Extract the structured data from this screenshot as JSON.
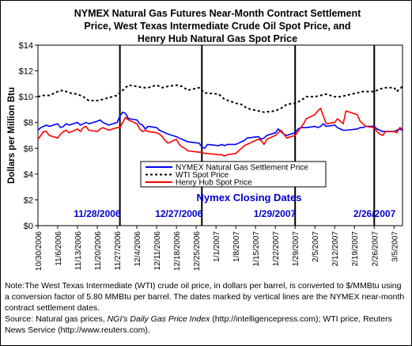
{
  "chart_data": {
    "type": "line",
    "title": "NYMEX Natural Gas Futures Near-Month Contract Settlement\nPrice, West Texas Intermediate Crude Oil Spot Price, and\nHenry Hub Natural Gas Spot Price",
    "ylabel": "Dollars per Million Btu",
    "xlabel": "",
    "ylim": [
      0,
      14
    ],
    "y_ticks": [
      "$0",
      "$2",
      "$4",
      "$6",
      "$8",
      "$10",
      "$12",
      "$14"
    ],
    "x_tick_labels": [
      "10/30/2006",
      "11/6/2006",
      "11/13/2006",
      "11/20/2006",
      "11/27/2006",
      "12/4/2006",
      "12/11/2006",
      "12/18/2006",
      "12/25/2006",
      "1/1/2007",
      "1/8/2007",
      "1/15/2007",
      "1/22/2007",
      "1/29/2007",
      "2/5/2007",
      "2/12/2007",
      "2/19/2007",
      "2/26/2007",
      "3/5/2007"
    ],
    "x_start": "10/30/2006",
    "x_end": "3/8/2007",
    "grid": false,
    "legend_position": "center",
    "series": [
      {
        "name": "NYMEX Natural Gas Settlement Price",
        "color": "#0000ff",
        "style": "solid",
        "points": [
          [
            "10/30/2006",
            7.4
          ],
          [
            "10/31/2006",
            7.6
          ],
          [
            "11/1/2006",
            7.7
          ],
          [
            "11/2/2006",
            7.8
          ],
          [
            "11/3/2006",
            7.7
          ],
          [
            "11/6/2006",
            7.9
          ],
          [
            "11/7/2006",
            7.6
          ],
          [
            "11/8/2006",
            7.7
          ],
          [
            "11/9/2006",
            7.9
          ],
          [
            "11/10/2006",
            7.8
          ],
          [
            "11/13/2006",
            8.0
          ],
          [
            "11/14/2006",
            7.8
          ],
          [
            "11/15/2006",
            7.9
          ],
          [
            "11/16/2006",
            8.0
          ],
          [
            "11/17/2006",
            7.9
          ],
          [
            "11/20/2006",
            8.1
          ],
          [
            "11/21/2006",
            8.2
          ],
          [
            "11/22/2006",
            8.0
          ],
          [
            "11/24/2006",
            7.8
          ],
          [
            "11/27/2006",
            8.0
          ],
          [
            "11/28/2006",
            8.5
          ],
          [
            "11/29/2006",
            8.8
          ],
          [
            "11/30/2006",
            8.7
          ],
          [
            "12/1/2006",
            8.3
          ],
          [
            "12/4/2006",
            8.2
          ],
          [
            "12/5/2006",
            7.9
          ],
          [
            "12/6/2006",
            7.8
          ],
          [
            "12/7/2006",
            7.5
          ],
          [
            "12/8/2006",
            7.7
          ],
          [
            "12/11/2006",
            7.6
          ],
          [
            "12/12/2006",
            7.4
          ],
          [
            "12/13/2006",
            7.3
          ],
          [
            "12/14/2006",
            7.2
          ],
          [
            "12/15/2006",
            7.1
          ],
          [
            "12/18/2006",
            6.9
          ],
          [
            "12/19/2006",
            6.8
          ],
          [
            "12/20/2006",
            6.7
          ],
          [
            "12/21/2006",
            6.6
          ],
          [
            "12/22/2006",
            6.5
          ],
          [
            "12/26/2006",
            6.4
          ],
          [
            "12/27/2006",
            6.1
          ],
          [
            "12/28/2006",
            6.0
          ],
          [
            "12/29/2006",
            6.3
          ],
          [
            "1/2/2007",
            6.2
          ],
          [
            "1/3/2007",
            6.3
          ],
          [
            "1/4/2007",
            6.2
          ],
          [
            "1/5/2007",
            6.3
          ],
          [
            "1/8/2007",
            6.3
          ],
          [
            "1/9/2007",
            6.4
          ],
          [
            "1/10/2007",
            6.5
          ],
          [
            "1/11/2007",
            6.6
          ],
          [
            "1/12/2007",
            6.8
          ],
          [
            "1/16/2007",
            6.9
          ],
          [
            "1/17/2007",
            6.7
          ],
          [
            "1/18/2007",
            6.8
          ],
          [
            "1/19/2007",
            7.0
          ],
          [
            "1/22/2007",
            7.2
          ],
          [
            "1/23/2007",
            7.5
          ],
          [
            "1/24/2007",
            7.3
          ],
          [
            "1/25/2007",
            7.1
          ],
          [
            "1/26/2007",
            7.0
          ],
          [
            "1/29/2007",
            7.2
          ],
          [
            "1/30/2007",
            7.5
          ],
          [
            "1/31/2007",
            7.6
          ],
          [
            "2/1/2007",
            7.6
          ],
          [
            "2/2/2007",
            7.6
          ],
          [
            "2/5/2007",
            7.7
          ],
          [
            "2/6/2007",
            7.6
          ],
          [
            "2/7/2007",
            7.7
          ],
          [
            "2/8/2007",
            7.9
          ],
          [
            "2/9/2007",
            7.7
          ],
          [
            "2/12/2007",
            7.8
          ],
          [
            "2/13/2007",
            7.6
          ],
          [
            "2/14/2007",
            7.5
          ],
          [
            "2/15/2007",
            7.4
          ],
          [
            "2/16/2007",
            7.4
          ],
          [
            "2/20/2007",
            7.5
          ],
          [
            "2/21/2007",
            7.6
          ],
          [
            "2/22/2007",
            7.6
          ],
          [
            "2/23/2007",
            7.7
          ],
          [
            "2/26/2007",
            7.7
          ],
          [
            "2/27/2007",
            7.5
          ],
          [
            "2/28/2007",
            7.4
          ],
          [
            "3/1/2007",
            7.3
          ],
          [
            "3/2/2007",
            7.3
          ],
          [
            "3/5/2007",
            7.3
          ],
          [
            "3/6/2007",
            7.4
          ],
          [
            "3/7/2007",
            7.5
          ],
          [
            "3/8/2007",
            7.4
          ]
        ]
      },
      {
        "name": "WTI Spot Price",
        "color": "#000000",
        "style": "dotted",
        "points": [
          [
            "10/30/2006",
            10.0
          ],
          [
            "11/1/2006",
            10.1
          ],
          [
            "11/3/2006",
            10.1
          ],
          [
            "11/6/2006",
            10.4
          ],
          [
            "11/8/2006",
            10.5
          ],
          [
            "11/10/2006",
            10.3
          ],
          [
            "11/13/2006",
            10.2
          ],
          [
            "11/15/2006",
            10.0
          ],
          [
            "11/17/2006",
            9.7
          ],
          [
            "11/20/2006",
            9.7
          ],
          [
            "11/22/2006",
            9.8
          ],
          [
            "11/27/2006",
            10.1
          ],
          [
            "11/29/2006",
            10.5
          ],
          [
            "12/1/2006",
            10.9
          ],
          [
            "12/4/2006",
            10.8
          ],
          [
            "12/6/2006",
            10.7
          ],
          [
            "12/8/2006",
            10.7
          ],
          [
            "12/11/2006",
            10.9
          ],
          [
            "12/13/2006",
            10.7
          ],
          [
            "12/15/2006",
            10.8
          ],
          [
            "12/18/2006",
            10.9
          ],
          [
            "12/20/2006",
            10.8
          ],
          [
            "12/22/2006",
            10.5
          ],
          [
            "12/26/2006",
            10.7
          ],
          [
            "12/28/2006",
            10.3
          ],
          [
            "1/2/2007",
            10.2
          ],
          [
            "1/4/2007",
            9.8
          ],
          [
            "1/8/2007",
            9.5
          ],
          [
            "1/10/2007",
            9.4
          ],
          [
            "1/12/2007",
            9.1
          ],
          [
            "1/16/2007",
            8.9
          ],
          [
            "1/18/2007",
            8.8
          ],
          [
            "1/22/2007",
            8.9
          ],
          [
            "1/24/2007",
            9.1
          ],
          [
            "1/26/2007",
            9.4
          ],
          [
            "1/29/2007",
            9.5
          ],
          [
            "1/31/2007",
            9.7
          ],
          [
            "2/2/2007",
            10.0
          ],
          [
            "2/5/2007",
            10.0
          ],
          [
            "2/7/2007",
            10.1
          ],
          [
            "2/9/2007",
            10.2
          ],
          [
            "2/12/2007",
            10.0
          ],
          [
            "2/14/2007",
            10.0
          ],
          [
            "2/16/2007",
            10.1
          ],
          [
            "2/20/2007",
            10.3
          ],
          [
            "2/22/2007",
            10.4
          ],
          [
            "2/26/2007",
            10.4
          ],
          [
            "2/28/2007",
            10.6
          ],
          [
            "3/2/2007",
            10.7
          ],
          [
            "3/5/2007",
            10.7
          ],
          [
            "3/6/2007",
            10.4
          ],
          [
            "3/8/2007",
            10.8
          ]
        ]
      },
      {
        "name": "Henry Hub Spot Price",
        "color": "#ff0000",
        "style": "solid",
        "points": [
          [
            "10/30/2006",
            6.7
          ],
          [
            "10/31/2006",
            7.0
          ],
          [
            "11/1/2006",
            7.3
          ],
          [
            "11/2/2006",
            7.3
          ],
          [
            "11/3/2006",
            7.0
          ],
          [
            "11/6/2006",
            6.8
          ],
          [
            "11/7/2006",
            7.1
          ],
          [
            "11/8/2006",
            7.3
          ],
          [
            "11/9/2006",
            7.4
          ],
          [
            "11/10/2006",
            7.2
          ],
          [
            "11/13/2006",
            7.5
          ],
          [
            "11/14/2006",
            7.3
          ],
          [
            "11/15/2006",
            7.6
          ],
          [
            "11/16/2006",
            7.7
          ],
          [
            "11/17/2006",
            7.4
          ],
          [
            "11/20/2006",
            7.3
          ],
          [
            "11/21/2006",
            7.5
          ],
          [
            "11/22/2006",
            7.6
          ],
          [
            "11/24/2006",
            7.4
          ],
          [
            "11/27/2006",
            7.6
          ],
          [
            "11/28/2006",
            7.6
          ],
          [
            "11/29/2006",
            8.0
          ],
          [
            "11/30/2006",
            8.4
          ],
          [
            "12/1/2006",
            8.2
          ],
          [
            "12/4/2006",
            7.9
          ],
          [
            "12/5/2006",
            7.5
          ],
          [
            "12/6/2006",
            7.3
          ],
          [
            "12/7/2006",
            7.4
          ],
          [
            "12/8/2006",
            7.3
          ],
          [
            "12/11/2006",
            7.2
          ],
          [
            "12/12/2006",
            7.1
          ],
          [
            "12/13/2006",
            6.9
          ],
          [
            "12/14/2006",
            6.6
          ],
          [
            "12/15/2006",
            6.4
          ],
          [
            "12/18/2006",
            6.7
          ],
          [
            "12/19/2006",
            6.3
          ],
          [
            "12/20/2006",
            6.1
          ],
          [
            "12/21/2006",
            6.0
          ],
          [
            "12/22/2006",
            5.8
          ],
          [
            "12/26/2006",
            5.7
          ],
          [
            "12/27/2006",
            5.7
          ],
          [
            "12/28/2006",
            5.6
          ],
          [
            "12/29/2006",
            5.6
          ],
          [
            "1/2/2007",
            5.5
          ],
          [
            "1/3/2007",
            5.5
          ],
          [
            "1/4/2007",
            5.4
          ],
          [
            "1/5/2007",
            5.5
          ],
          [
            "1/8/2007",
            5.6
          ],
          [
            "1/9/2007",
            5.8
          ],
          [
            "1/10/2007",
            6.0
          ],
          [
            "1/11/2007",
            6.2
          ],
          [
            "1/12/2007",
            6.3
          ],
          [
            "1/16/2007",
            6.7
          ],
          [
            "1/17/2007",
            6.6
          ],
          [
            "1/18/2007",
            6.3
          ],
          [
            "1/19/2007",
            6.7
          ],
          [
            "1/22/2007",
            7.0
          ],
          [
            "1/23/2007",
            7.2
          ],
          [
            "1/24/2007",
            7.4
          ],
          [
            "1/25/2007",
            7.1
          ],
          [
            "1/26/2007",
            6.8
          ],
          [
            "1/29/2007",
            7.0
          ],
          [
            "1/30/2007",
            7.3
          ],
          [
            "1/31/2007",
            7.6
          ],
          [
            "2/1/2007",
            7.9
          ],
          [
            "2/2/2007",
            8.3
          ],
          [
            "2/5/2007",
            8.6
          ],
          [
            "2/6/2007",
            8.9
          ],
          [
            "2/7/2007",
            9.1
          ],
          [
            "2/8/2007",
            8.5
          ],
          [
            "2/9/2007",
            7.9
          ],
          [
            "2/12/2007",
            8.0
          ],
          [
            "2/13/2007",
            8.3
          ],
          [
            "2/14/2007",
            8.1
          ],
          [
            "2/15/2007",
            7.9
          ],
          [
            "2/16/2007",
            8.9
          ],
          [
            "2/20/2007",
            8.6
          ],
          [
            "2/21/2007",
            8.1
          ],
          [
            "2/22/2007",
            7.9
          ],
          [
            "2/23/2007",
            7.7
          ],
          [
            "2/26/2007",
            7.6
          ],
          [
            "2/27/2007",
            7.3
          ],
          [
            "2/28/2007",
            7.1
          ],
          [
            "3/1/2007",
            7.0
          ],
          [
            "3/2/2007",
            7.3
          ],
          [
            "3/5/2007",
            7.3
          ],
          [
            "3/6/2007",
            7.2
          ],
          [
            "3/7/2007",
            7.6
          ],
          [
            "3/8/2007",
            7.5
          ]
        ]
      }
    ],
    "annotations": {
      "heading": "Nymex Closing Dates",
      "closing_dates": [
        "11/28/2006",
        "12/27/2006",
        "1/29/2007",
        "2/26/2007"
      ],
      "color": "#0000cc"
    }
  },
  "note": {
    "line1": "Note:The West Texas Intermediate (WTI) crude oil price, in dollars per barrel,  is converted to $/MMBtu using a conversion factor of 5.80 MMBtu per barrel.  The dates marked by vertical lines are the NYMEX near-month contract settlement dates.",
    "source_prefix": "Source: Natural gas prices, ",
    "source_italic": "NGI's Daily Gas Price Index",
    "source_rest": " (http://intelligencepress.com); WTI price, Reuters News Service (http://www.reuters.com)."
  }
}
